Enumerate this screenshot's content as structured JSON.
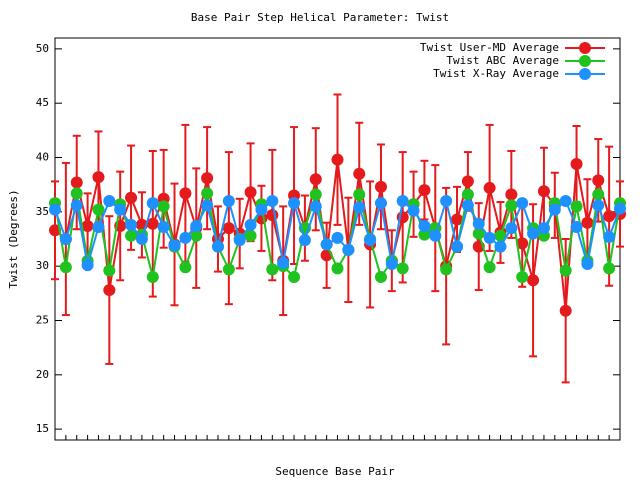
{
  "chart_data": {
    "type": "line",
    "title": "Base Pair Step Helical Parameter: Twist",
    "xlabel": "Sequence Base Pair",
    "ylabel": "Twist (Degrees)",
    "categories": [
      null,
      null,
      null,
      null,
      null,
      null,
      null,
      null,
      null,
      null,
      null,
      null,
      null,
      null,
      null,
      null,
      null,
      null,
      null,
      null,
      null,
      null,
      null,
      null,
      null,
      null,
      null,
      null,
      null,
      null,
      null,
      null,
      null,
      null,
      null,
      null,
      null,
      null,
      null,
      null,
      null,
      null,
      null,
      null,
      null,
      null,
      null,
      null,
      null,
      null,
      null,
      null,
      null
    ],
    "ylim": [
      14,
      51
    ],
    "yticks": [
      15,
      20,
      25,
      30,
      35,
      40,
      45,
      50
    ],
    "legend": "top-right",
    "series": [
      {
        "name": "Twist User-MD Average",
        "color": "#e41a1c",
        "values": [
          33.3,
          32.5,
          37.7,
          33.7,
          38.2,
          27.8,
          33.7,
          36.3,
          33.8,
          33.9,
          36.2,
          32,
          36.7,
          33.5,
          38.1,
          32.5,
          33.5,
          33,
          36.8,
          34.4,
          34.7,
          30.5,
          36.5,
          33.5,
          38,
          31,
          39.8,
          31.5,
          38.5,
          32,
          37.3,
          30.5,
          34.5,
          35.7,
          37,
          33.5,
          30,
          34.3,
          37.8,
          31.8,
          37.2,
          33.1,
          36.6,
          32.1,
          28.7,
          36.9,
          35.6,
          25.9,
          39.4,
          34,
          37.9,
          34.6,
          34.8
        ],
        "errors": [
          4.5,
          7,
          4.3,
          3,
          4.2,
          6.8,
          5,
          4.8,
          3,
          6.7,
          4.5,
          5.6,
          6.3,
          5.5,
          4.7,
          3,
          7,
          3.2,
          4.5,
          3,
          6,
          5,
          6.3,
          3,
          4.7,
          3,
          6,
          4.8,
          4.7,
          5.8,
          3.9,
          2.8,
          6,
          3,
          2.7,
          5.8,
          7.2,
          3,
          2.7,
          4,
          5.8,
          2.8,
          4,
          4,
          7,
          4,
          3,
          6.6,
          3.5,
          4,
          3.8,
          6.4,
          3
        ]
      },
      {
        "name": "Twist ABC Average",
        "color": "#1fc21f",
        "values": [
          35.8,
          29.9,
          36.7,
          30.5,
          35.2,
          29.6,
          35.7,
          32.8,
          32.9,
          29,
          35.5,
          31.8,
          29.9,
          32.8,
          36.7,
          31.8,
          29.7,
          32.5,
          32.8,
          35.7,
          29.7,
          30,
          29,
          33.5,
          36.6,
          32,
          29.8,
          31.5,
          36.6,
          32.5,
          29,
          30.5,
          29.8,
          35.7,
          32.9,
          33.5,
          29.7,
          31.8,
          36.6,
          33,
          29.9,
          32.8,
          35.6,
          29,
          33.5,
          32.8,
          35.8,
          29.6,
          35.5,
          30.5,
          36.6,
          29.8,
          35.8
        ]
      },
      {
        "name": "Twist X-Ray Average",
        "color": "#1e90ff",
        "values": [
          35.2,
          32.5,
          35.6,
          30.1,
          33.6,
          36,
          35.2,
          33.8,
          32.5,
          35.8,
          33.6,
          31.9,
          32.6,
          33.7,
          35.6,
          31.8,
          36,
          32.4,
          33.8,
          35.2,
          36,
          30.3,
          35.8,
          32.4,
          35.5,
          32,
          32.6,
          31.5,
          35.4,
          32.4,
          35.8,
          30.2,
          36,
          35.1,
          33.7,
          32.8,
          36,
          31.8,
          35.6,
          33.9,
          32.6,
          31.8,
          33.5,
          35.8,
          33,
          33.5,
          35.2,
          36,
          33.6,
          30.2,
          35.6,
          32.7,
          35.3
        ]
      }
    ]
  }
}
